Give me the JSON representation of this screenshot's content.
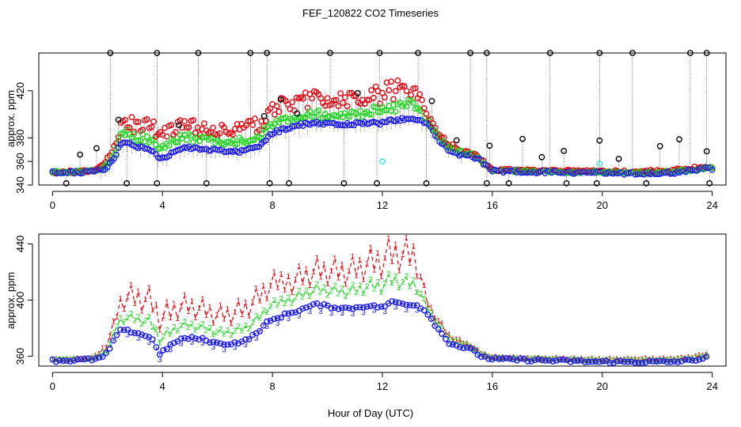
{
  "figure": {
    "title": "FEF_120822  CO2 Timeseries",
    "shared_xlabel": "Hour of Day (UTC)"
  },
  "colors": {
    "black": "#000000",
    "red": "#e8000b",
    "green": "#1bd61b",
    "blue": "#1a1aef",
    "cyan": "#2ee6e6"
  },
  "chart_data": [
    {
      "type": "scatter",
      "panel": "top",
      "title": "FEF_120822  CO2 Timeseries",
      "xlabel": "",
      "ylabel": "approx. ppm",
      "xlim": [
        -0.5,
        24.5
      ],
      "ylim": [
        340,
        452
      ],
      "xticks": [
        0,
        4,
        8,
        12,
        16,
        20,
        24
      ],
      "xtick_labels": [
        "0",
        "4",
        "8",
        "12",
        "16",
        "20",
        "24"
      ],
      "yticks": [
        340,
        360,
        380,
        420
      ],
      "ytick_labels": [
        "340",
        "360",
        "380",
        "420"
      ],
      "marker": "o",
      "series": [
        {
          "name": "1",
          "color": "red",
          "description": "highest of each cycle"
        },
        {
          "name": "2",
          "color": "green",
          "description": "middle of each cycle"
        },
        {
          "name": "3",
          "color": "blue",
          "description": "lowest of each cycle"
        },
        {
          "name": "min/max excursions",
          "color": "black",
          "description": "cycle extremes connected by dotted vertical lines"
        },
        {
          "name": "flagged",
          "color": "cyan",
          "description": "few flagged points"
        }
      ],
      "profile": [
        [
          0.0,
          350.5
        ],
        [
          0.6,
          350.5
        ],
        [
          1.2,
          351
        ],
        [
          1.6,
          352
        ],
        [
          1.9,
          354
        ],
        [
          2.1,
          358
        ],
        [
          2.3,
          366
        ],
        [
          2.5,
          375
        ],
        [
          2.7,
          376
        ],
        [
          3.0,
          372
        ],
        [
          3.3,
          372
        ],
        [
          3.6,
          370
        ],
        [
          3.9,
          362
        ],
        [
          4.2,
          364
        ],
        [
          4.5,
          370
        ],
        [
          4.9,
          372
        ],
        [
          5.3,
          371
        ],
        [
          5.8,
          370
        ],
        [
          6.2,
          369
        ],
        [
          6.6,
          368
        ],
        [
          7.0,
          369
        ],
        [
          7.3,
          371
        ],
        [
          7.6,
          374
        ],
        [
          8.0,
          384
        ],
        [
          8.5,
          388
        ],
        [
          9.0,
          391
        ],
        [
          9.6,
          393
        ],
        [
          10.0,
          392
        ],
        [
          10.5,
          391
        ],
        [
          11.0,
          392
        ],
        [
          11.5,
          393
        ],
        [
          11.9,
          392
        ],
        [
          12.2,
          394
        ],
        [
          12.5,
          395
        ],
        [
          12.8,
          396
        ],
        [
          13.1,
          396
        ],
        [
          13.4,
          395
        ],
        [
          13.7,
          390
        ],
        [
          14.0,
          380
        ],
        [
          14.4,
          370
        ],
        [
          14.8,
          366
        ],
        [
          15.2,
          365
        ],
        [
          15.5,
          362
        ],
        [
          15.8,
          356
        ],
        [
          16.0,
          352
        ],
        [
          17.0,
          351.5
        ],
        [
          18.0,
          351
        ],
        [
          19.0,
          350.5
        ],
        [
          19.8,
          350.5
        ],
        [
          20.5,
          350
        ],
        [
          21.5,
          350
        ],
        [
          22.5,
          350.5
        ],
        [
          23.2,
          352
        ],
        [
          23.8,
          354
        ]
      ],
      "spread_red": [
        [
          0,
          0.5
        ],
        [
          1.5,
          1
        ],
        [
          2.2,
          8
        ],
        [
          2.6,
          22
        ],
        [
          3.5,
          25
        ],
        [
          6,
          20
        ],
        [
          7.5,
          22
        ],
        [
          9,
          25
        ],
        [
          11,
          25
        ],
        [
          12.5,
          30
        ],
        [
          13.2,
          30
        ],
        [
          13.6,
          8
        ],
        [
          15,
          3
        ],
        [
          16,
          1
        ],
        [
          24,
          2
        ]
      ],
      "spread_green": [
        [
          0,
          0.5
        ],
        [
          1.5,
          0.5
        ],
        [
          2.2,
          4
        ],
        [
          2.6,
          10
        ],
        [
          3.5,
          12
        ],
        [
          6,
          10
        ],
        [
          7.5,
          10
        ],
        [
          9,
          10
        ],
        [
          11,
          10
        ],
        [
          12.5,
          15
        ],
        [
          13.2,
          15
        ],
        [
          13.6,
          4
        ],
        [
          15,
          2
        ],
        [
          16,
          0.5
        ],
        [
          24,
          1
        ]
      ],
      "black_extremes": {
        "high_hours": [
          2.1,
          3.8,
          5.3,
          7.2,
          7.8,
          10.1,
          11.9,
          13.3,
          15.2,
          15.8,
          18.1,
          19.9,
          21.1,
          23.2,
          23.8
        ],
        "high_value": 452,
        "mid_hours": [
          1.0,
          1.6,
          2.4,
          4.6,
          7.7,
          8.3,
          8.9,
          11.1,
          13.8,
          14.7,
          15.9,
          17.1,
          17.8,
          18.6,
          19.9,
          20.6,
          22.1,
          22.8,
          23.8
        ],
        "low_hours": [
          0.5,
          2.7,
          3.8,
          5.6,
          7.9,
          8.6,
          10.6,
          11.8,
          13.6,
          15.8,
          16.6,
          18.7,
          19.8,
          21.6,
          23.9
        ]
      },
      "cyan_points": [
        [
          12.0,
          360
        ],
        [
          19.9,
          358
        ]
      ]
    },
    {
      "type": "line",
      "panel": "bottom",
      "xlabel": "Hour of Day (UTC)",
      "ylabel": "approx. ppm",
      "xlim": [
        -0.5,
        24.5
      ],
      "ylim": [
        353,
        447
      ],
      "xticks": [
        0,
        4,
        8,
        12,
        16,
        20,
        24
      ],
      "xtick_labels": [
        "0",
        "4",
        "8",
        "12",
        "16",
        "20",
        "24"
      ],
      "yticks": [
        360,
        400,
        440
      ],
      "ytick_labels": [
        "360",
        "400",
        "440"
      ],
      "series": [
        {
          "name": "1",
          "label": "1",
          "color": "red",
          "style": "dashed line with '1' symbols"
        },
        {
          "name": "2",
          "label": "2",
          "color": "green",
          "style": "dashed line with '2' symbols"
        },
        {
          "name": "3",
          "label": "3",
          "color": "blue",
          "style": "dashed line with '3' symbols"
        }
      ],
      "profile_3": [
        [
          0.0,
          357
        ],
        [
          0.6,
          357
        ],
        [
          1.2,
          357.5
        ],
        [
          1.6,
          358
        ],
        [
          1.9,
          360
        ],
        [
          2.1,
          366
        ],
        [
          2.4,
          378
        ],
        [
          2.8,
          378
        ],
        [
          3.2,
          376
        ],
        [
          3.6,
          373
        ],
        [
          3.9,
          362
        ],
        [
          4.2,
          366
        ],
        [
          4.6,
          372
        ],
        [
          5.0,
          373
        ],
        [
          5.5,
          372
        ],
        [
          6.0,
          369
        ],
        [
          6.5,
          369
        ],
        [
          7.0,
          371
        ],
        [
          7.4,
          376
        ],
        [
          7.8,
          384
        ],
        [
          8.5,
          390
        ],
        [
          9.0,
          393
        ],
        [
          9.6,
          397
        ],
        [
          10.2,
          395
        ],
        [
          10.8,
          394
        ],
        [
          11.4,
          396
        ],
        [
          12.0,
          395
        ],
        [
          12.4,
          399
        ],
        [
          12.8,
          397
        ],
        [
          13.2,
          397
        ],
        [
          13.6,
          392
        ],
        [
          14.0,
          380
        ],
        [
          14.4,
          370
        ],
        [
          14.8,
          367
        ],
        [
          15.2,
          365
        ],
        [
          15.6,
          360
        ],
        [
          16.0,
          358
        ],
        [
          17.0,
          357.5
        ],
        [
          18.0,
          357
        ],
        [
          19.0,
          356.5
        ],
        [
          19.8,
          356
        ],
        [
          20.5,
          356
        ],
        [
          21.5,
          356
        ],
        [
          22.5,
          356
        ],
        [
          23.2,
          357
        ],
        [
          23.8,
          359
        ]
      ],
      "spread_1": [
        [
          0,
          0.5
        ],
        [
          1.5,
          1
        ],
        [
          2.2,
          12
        ],
        [
          2.6,
          28
        ],
        [
          3.5,
          30
        ],
        [
          6,
          22
        ],
        [
          7.5,
          26
        ],
        [
          9,
          28
        ],
        [
          11,
          32
        ],
        [
          12.2,
          40
        ],
        [
          13.2,
          40
        ],
        [
          13.6,
          8
        ],
        [
          15,
          3
        ],
        [
          16,
          1
        ],
        [
          24,
          2
        ]
      ],
      "spread_2": [
        [
          0,
          0.2
        ],
        [
          1.5,
          0.5
        ],
        [
          2.2,
          5
        ],
        [
          2.6,
          10
        ],
        [
          3.5,
          12
        ],
        [
          6,
          8
        ],
        [
          7.5,
          10
        ],
        [
          9,
          12
        ],
        [
          11,
          14
        ],
        [
          12.2,
          18
        ],
        [
          13.2,
          16
        ],
        [
          13.6,
          4
        ],
        [
          15,
          2
        ],
        [
          16,
          0.5
        ],
        [
          24,
          1
        ]
      ]
    }
  ]
}
